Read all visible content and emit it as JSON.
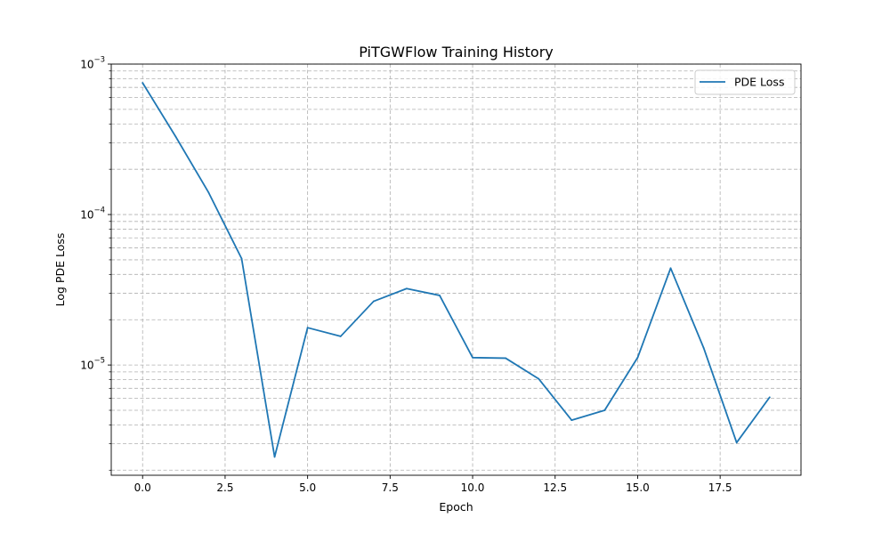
{
  "chart_data": {
    "type": "line",
    "title": "PiTGWFlow Training History",
    "xlabel": "Epoch",
    "ylabel": "Log PDE Loss",
    "yscale": "log",
    "grid": true,
    "legend_position": "top-right",
    "xlim": [
      -0.95,
      19.95
    ],
    "ylim": [
      1.85e-06,
      0.001
    ],
    "x_ticks": [
      0,
      2.5,
      5,
      7.5,
      10,
      12.5,
      15,
      17.5
    ],
    "x_tick_labels": [
      "0.0",
      "2.5",
      "5.0",
      "7.5",
      "10.0",
      "12.5",
      "15.0",
      "17.5"
    ],
    "y_major_ticks": [
      {
        "value": 1e-05,
        "base": "10",
        "exp": "−5"
      },
      {
        "value": 0.0001,
        "base": "10",
        "exp": "−4"
      },
      {
        "value": 0.001,
        "base": "10",
        "exp": "−3"
      }
    ],
    "y_minor_ticks": [
      2e-06,
      3e-06,
      4e-06,
      5e-06,
      6e-06,
      7e-06,
      8e-06,
      9e-06,
      2e-05,
      3e-05,
      4e-05,
      5e-05,
      6e-05,
      7e-05,
      8e-05,
      9e-05,
      0.0002,
      0.0003,
      0.0004,
      0.0005,
      0.0006,
      0.0007,
      0.0008,
      0.0009
    ],
    "series": [
      {
        "name": "PDE Loss",
        "color": "#1f77b4",
        "x": [
          0,
          1,
          2,
          3,
          4,
          5,
          6,
          7,
          8,
          9,
          10,
          11,
          12,
          13,
          14,
          15,
          16,
          17,
          18,
          19
        ],
        "y": [
          0.00075,
          0.00033,
          0.00014,
          5.1e-05,
          2.45e-06,
          1.77e-05,
          1.55e-05,
          2.65e-05,
          3.22e-05,
          2.9e-05,
          1.12e-05,
          1.11e-05,
          8.1e-06,
          4.3e-06,
          5e-06,
          1.12e-05,
          4.4e-05,
          1.3e-05,
          3.05e-06,
          6.1e-06
        ]
      }
    ]
  }
}
